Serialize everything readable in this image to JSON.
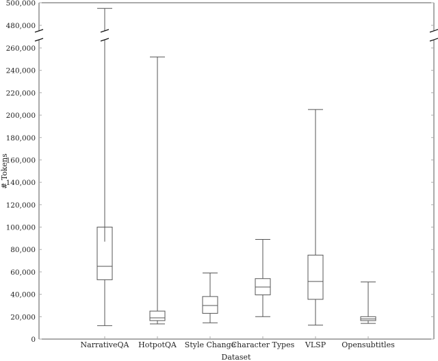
{
  "chart_data": {
    "type": "box",
    "title": "",
    "xlabel": "Dataset",
    "ylabel": "# Tokens",
    "categories": [
      "NarrativeQA",
      "HotpotQA",
      "Style Change",
      "Character Types",
      "VLSP",
      "Opensubtitles"
    ],
    "series": [
      {
        "name": "NarrativeQA",
        "whisker_low": 12000,
        "q1": 53000,
        "median": 65000,
        "q3": 100000,
        "whisker_high": 495000,
        "inner_mark": 87000
      },
      {
        "name": "HotpotQA",
        "whisker_low": 13500,
        "q1": 16500,
        "median": 19000,
        "q3": 25000,
        "whisker_high": 252000
      },
      {
        "name": "Style Change",
        "whisker_low": 14500,
        "q1": 23000,
        "median": 30000,
        "q3": 38000,
        "whisker_high": 59000
      },
      {
        "name": "Character Types",
        "whisker_low": 20000,
        "q1": 39500,
        "median": 46500,
        "q3": 54000,
        "whisker_high": 89000
      },
      {
        "name": "VLSP",
        "whisker_low": 12500,
        "q1": 35500,
        "median": 51500,
        "q3": 75000,
        "whisker_high": 205000
      },
      {
        "name": "Opensubtitles",
        "whisker_low": 14000,
        "q1": 16500,
        "median": 18000,
        "q3": 20000,
        "whisker_high": 51000
      }
    ],
    "y_ticks_lower": [
      "0",
      "20,000",
      "40,000",
      "60,000",
      "80,000",
      "100,000",
      "120,000",
      "140,000",
      "160,000",
      "180,000",
      "200,000",
      "220,000",
      "240,000",
      "260,000"
    ],
    "y_ticks_upper": [
      "480,000",
      "500,000"
    ],
    "ylim_lower": [
      0,
      265000
    ],
    "ylim_upper": [
      470000,
      500000
    ],
    "axis_break": true,
    "grid": false,
    "legend": "none"
  },
  "labels": {
    "xlabel": "Dataset",
    "ylabel": "# Tokens"
  }
}
